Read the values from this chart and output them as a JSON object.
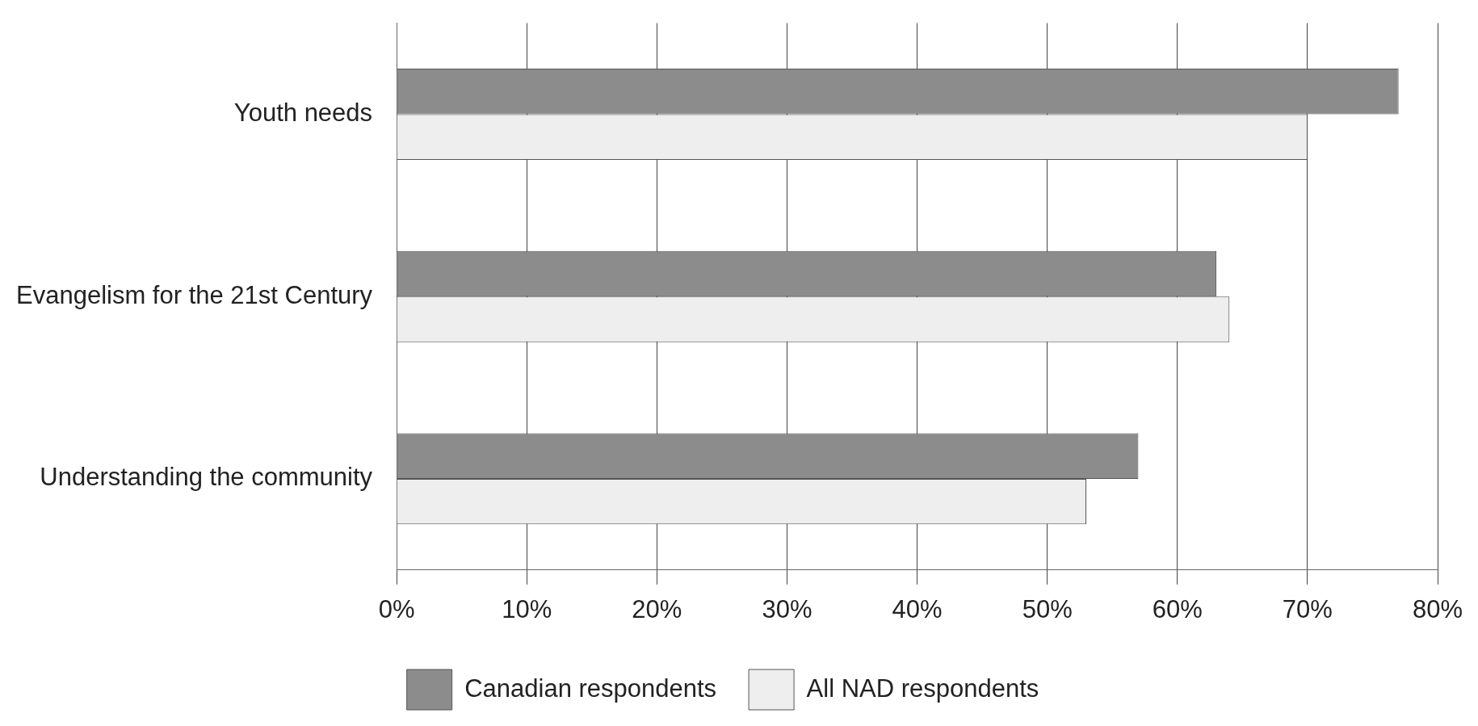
{
  "chart_data": {
    "type": "bar",
    "orientation": "horizontal",
    "categories": [
      "Youth needs",
      "Evangelism for the 21st Century",
      "Understanding the community"
    ],
    "series": [
      {
        "name": "Canadian respondents",
        "color": "#8c8c8c",
        "values": [
          77,
          63,
          57
        ]
      },
      {
        "name": "All NAD respondents",
        "color": "#eeeeee",
        "values": [
          70,
          64,
          53
        ]
      }
    ],
    "xlim": [
      0,
      80
    ],
    "xticks": [
      {
        "value": 0,
        "label": "0%"
      },
      {
        "value": 10,
        "label": "10%"
      },
      {
        "value": 20,
        "label": "20%"
      },
      {
        "value": 30,
        "label": "30%"
      },
      {
        "value": 40,
        "label": "40%"
      },
      {
        "value": 50,
        "label": "50%"
      },
      {
        "value": 60,
        "label": "60%"
      },
      {
        "value": 70,
        "label": "70%"
      },
      {
        "value": 80,
        "label": "80%"
      }
    ],
    "grid": "x",
    "legend": "bottom"
  }
}
